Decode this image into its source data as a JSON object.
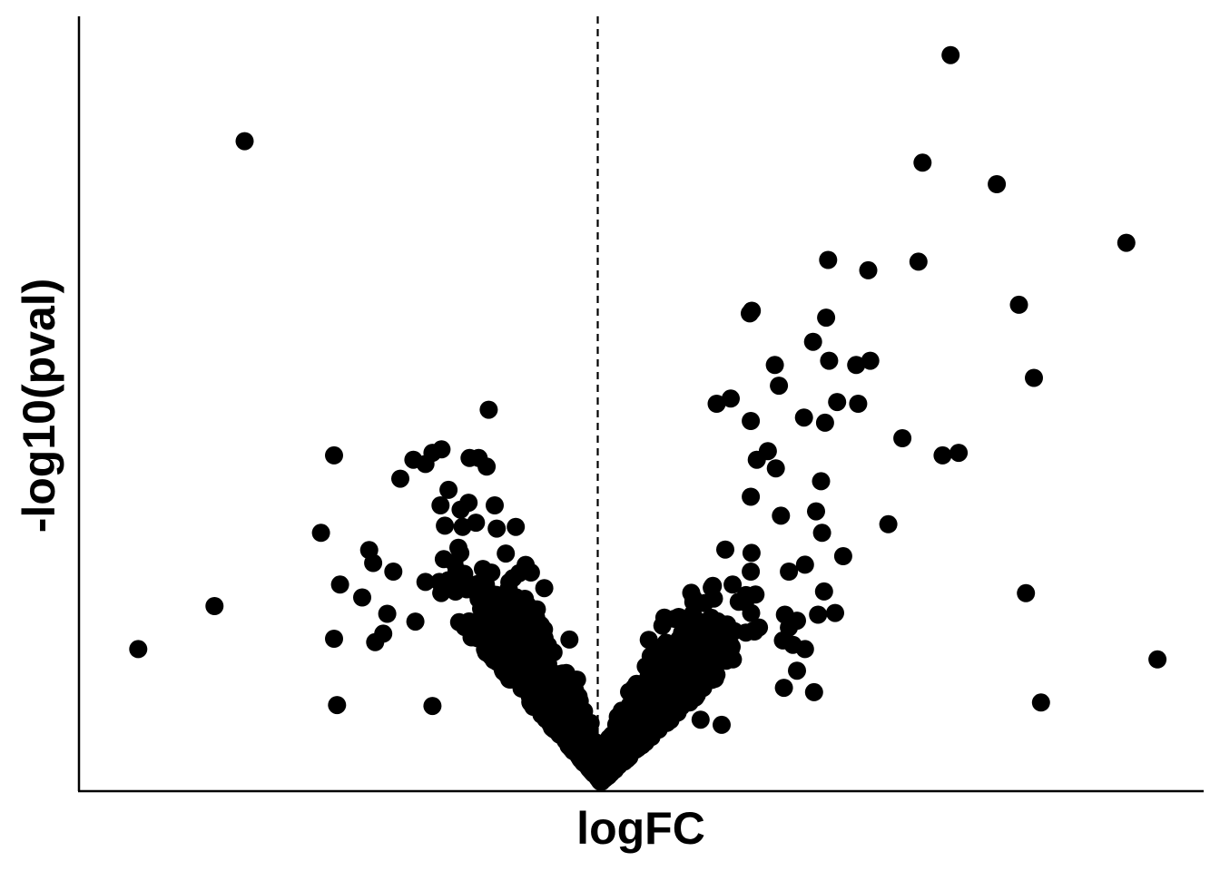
{
  "chart_data": {
    "type": "scatter",
    "title": "",
    "xlabel": "logFC",
    "ylabel": "-log10(pval)",
    "xlim": [
      -5.2,
      6.0
    ],
    "ylim": [
      0,
      9.0
    ],
    "grid": false,
    "legend": "none",
    "reference_lines": [
      {
        "axis": "x",
        "value": 0,
        "style": "dashed"
      }
    ],
    "point_color": "#000000",
    "outlier_points": [
      [
        3.48,
        8.55
      ],
      [
        3.2,
        7.3
      ],
      [
        3.94,
        7.05
      ],
      [
        5.23,
        6.37
      ],
      [
        3.16,
        6.15
      ],
      [
        4.16,
        5.65
      ],
      [
        4.31,
        4.8
      ],
      [
        3.0,
        4.1
      ],
      [
        2.86,
        3.1
      ],
      [
        3.4,
        3.9
      ],
      [
        3.56,
        3.93
      ],
      [
        4.23,
        2.3
      ],
      [
        4.38,
        1.03
      ],
      [
        5.54,
        1.53
      ],
      [
        2.66,
        6.05
      ],
      [
        2.26,
        6.17
      ],
      [
        2.24,
        5.5
      ],
      [
        2.11,
        5.22
      ],
      [
        1.5,
        5.58
      ],
      [
        1.48,
        5.55
      ],
      [
        2.68,
        5.0
      ],
      [
        2.54,
        4.95
      ],
      [
        2.35,
        4.52
      ],
      [
        2.27,
        5.0
      ],
      [
        2.56,
        4.5
      ],
      [
        2.23,
        4.28
      ],
      [
        1.73,
        4.95
      ],
      [
        2.02,
        4.34
      ],
      [
        1.77,
        4.71
      ],
      [
        2.19,
        3.6
      ],
      [
        1.29,
        4.56
      ],
      [
        1.15,
        4.5
      ],
      [
        1.66,
        3.95
      ],
      [
        1.49,
        4.3
      ],
      [
        1.55,
        3.85
      ],
      [
        2.2,
        3.0
      ],
      [
        2.14,
        3.25
      ],
      [
        2.03,
        2.63
      ],
      [
        2.41,
        2.73
      ],
      [
        1.49,
        3.42
      ],
      [
        1.74,
        3.75
      ],
      [
        1.79,
        3.2
      ],
      [
        2.33,
        2.07
      ],
      [
        2.22,
        2.32
      ],
      [
        2.16,
        2.05
      ],
      [
        1.81,
        1.75
      ],
      [
        1.87,
        1.9
      ],
      [
        1.87,
        2.55
      ],
      [
        1.83,
        2.05
      ],
      [
        1.91,
        1.7
      ],
      [
        1.49,
        2.55
      ],
      [
        1.95,
        1.4
      ],
      [
        2.03,
        1.65
      ],
      [
        1.37,
        2.2
      ],
      [
        1.95,
        1.98
      ],
      [
        2.12,
        1.15
      ],
      [
        1.82,
        1.2
      ],
      [
        1.2,
        0.77
      ],
      [
        0.99,
        0.83
      ],
      [
        -3.55,
        7.55
      ],
      [
        -4.61,
        1.65
      ],
      [
        -3.85,
        2.15
      ],
      [
        -2.66,
        3.9
      ],
      [
        -2.79,
        3.0
      ],
      [
        -2.6,
        2.4
      ],
      [
        -2.66,
        1.77
      ],
      [
        -2.63,
        1.0
      ],
      [
        -2.31,
        2.8
      ],
      [
        -2.27,
        2.65
      ],
      [
        -2.07,
        2.55
      ],
      [
        -2.38,
        2.25
      ],
      [
        -2.13,
        2.06
      ],
      [
        -2.17,
        1.83
      ],
      [
        -2.25,
        1.73
      ],
      [
        -1.85,
        1.97
      ],
      [
        -2.0,
        3.63
      ],
      [
        -1.75,
        3.8
      ],
      [
        -1.87,
        3.85
      ],
      [
        -1.68,
        3.93
      ],
      [
        -1.59,
        3.97
      ],
      [
        -1.75,
        2.43
      ],
      [
        -1.68,
        0.99
      ],
      [
        -1.12,
        4.43
      ],
      [
        -1.22,
        3.87
      ],
      [
        -1.14,
        3.77
      ],
      [
        -1.31,
        3.87
      ],
      [
        -1.6,
        3.32
      ],
      [
        -1.52,
        3.5
      ],
      [
        -1.4,
        3.27
      ],
      [
        -1.38,
        3.07
      ],
      [
        -1.32,
        3.35
      ],
      [
        -1.06,
        3.32
      ],
      [
        -1.04,
        3.05
      ],
      [
        -1.52,
        2.45
      ],
      [
        -1.43,
        2.37
      ],
      [
        -1.38,
        2.37
      ],
      [
        -1.61,
        2.43
      ],
      [
        -0.95,
        2.76
      ],
      [
        -0.85,
        3.07
      ]
    ],
    "core": {
      "n": 1600,
      "x_sd": 0.55,
      "lower_envelope": "y ≈ 1.05·|x| + 0.1 (positive side) / 1.30·|x| + 0.1 (negative side)"
    }
  }
}
